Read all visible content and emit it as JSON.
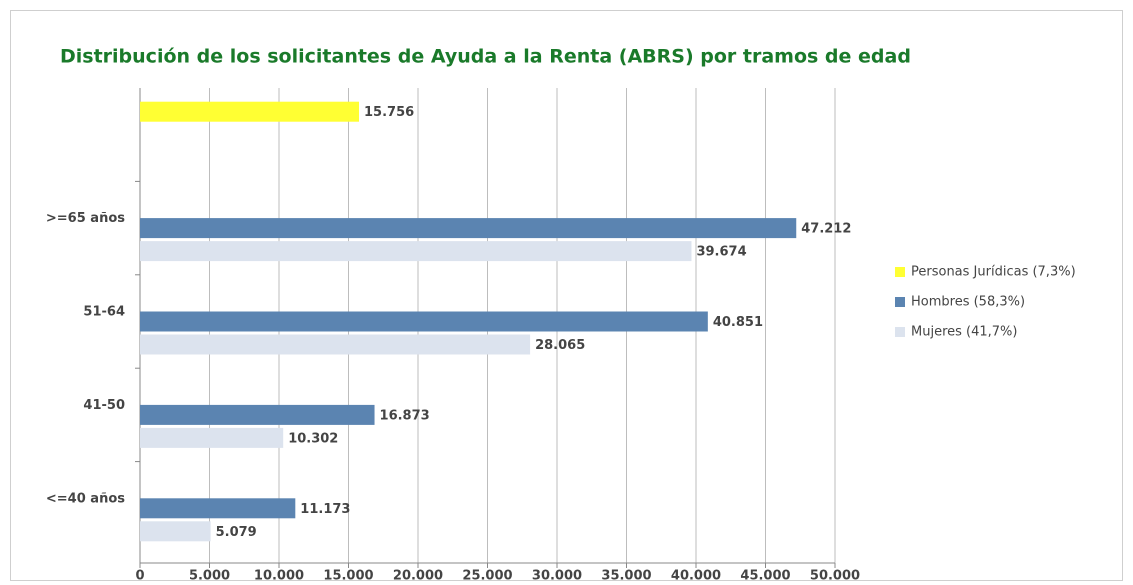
{
  "chart_data": {
    "type": "hbar",
    "title": "Distribución  de los  solicitantes de Ayuda a la Renta (ABRS) por tramos de edad",
    "categories": [
      null,
      ">=65 años",
      "51-64",
      "41-50",
      "<=40 años"
    ],
    "series": [
      {
        "name": "Personas Jurídicas (7,3%)",
        "color": "#ffff33",
        "values": [
          15756,
          null,
          null,
          null,
          null
        ],
        "value_labels": [
          "15.756",
          null,
          null,
          null,
          null
        ]
      },
      {
        "name": "Hombres (58,3%)",
        "color": "#5b84b1",
        "values": [
          null,
          47212,
          40851,
          16873,
          11173
        ],
        "value_labels": [
          null,
          "47.212",
          "40.851",
          "16.873",
          "11.173"
        ]
      },
      {
        "name": "Mujeres (41,7%)",
        "color": "#dce3ee",
        "values": [
          null,
          39674,
          28065,
          10302,
          5079
        ],
        "value_labels": [
          null,
          "39.674",
          "28.065",
          "10.302",
          "5.079"
        ]
      }
    ],
    "xlim": [
      0,
      50000
    ],
    "xticks": [
      0,
      {
        "value": 5000,
        "label": "5.000"
      },
      {
        "value": 10000,
        "label": "10.000"
      },
      {
        "value": 15000,
        "label": "15.000"
      },
      {
        "value": 20000,
        "label": "20.000"
      },
      {
        "value": 25000,
        "label": "25.000"
      },
      {
        "value": 30000,
        "label": "30.000"
      },
      {
        "value": 35000,
        "label": "35.000"
      },
      {
        "value": 40000,
        "label": "40.000"
      },
      {
        "value": 45000,
        "label": "45.000"
      },
      {
        "value": 50000,
        "label": "50.000"
      }
    ],
    "grid": true,
    "legend": "right"
  }
}
